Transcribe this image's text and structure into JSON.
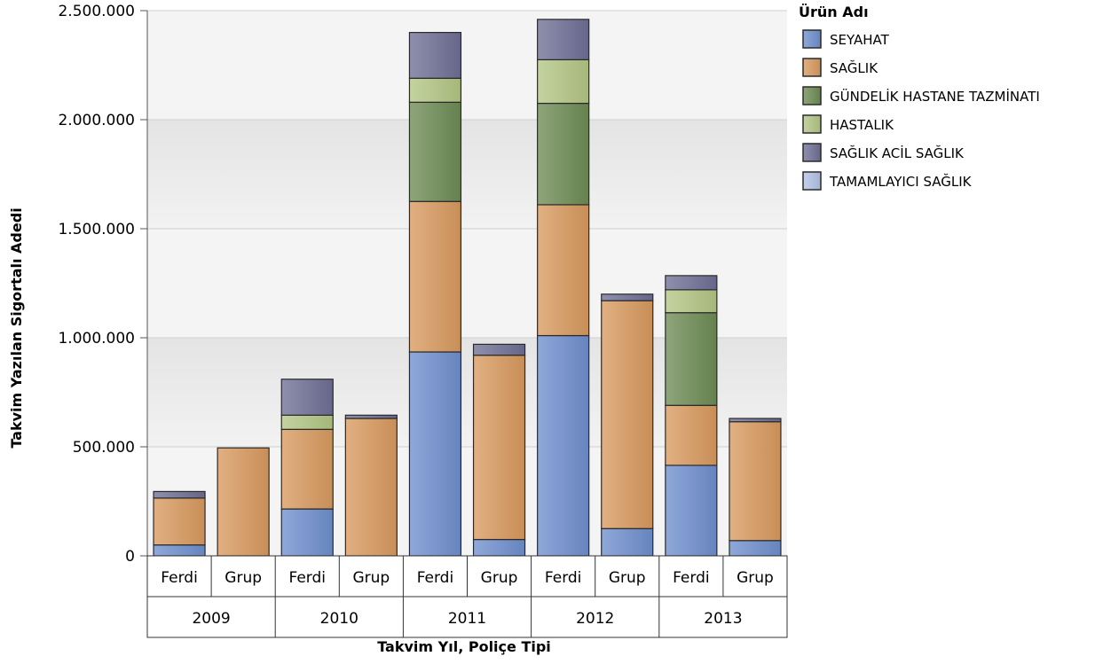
{
  "chart_data": {
    "type": "bar",
    "stacked": true,
    "xlabel": "Takvim Yıl, Poliçe Tipi",
    "ylabel": "Takvim Yazılan Sigortalı Adedi",
    "ylim": [
      0,
      2500000
    ],
    "y_ticks": [
      "0",
      "500.000",
      "1.000.000",
      "1.500.000",
      "2.000.000",
      "2.500.000"
    ],
    "grid": true,
    "legend_placement": "top-right",
    "legend_title": "Ürün Adı",
    "groups": [
      "2009",
      "2010",
      "2011",
      "2012",
      "2013"
    ],
    "categories": [
      "Ferdi",
      "Grup",
      "Ferdi",
      "Grup",
      "Ferdi",
      "Grup",
      "Ferdi",
      "Grup",
      "Ferdi",
      "Grup"
    ],
    "series": [
      {
        "name": "SEYAHAT",
        "color": "#6f8fce",
        "values": [
          50000,
          0,
          215000,
          0,
          935000,
          75000,
          1010000,
          125000,
          415000,
          70000
        ]
      },
      {
        "name": "SAĞLIK",
        "color": "#d99a5f",
        "values": [
          215000,
          495000,
          365000,
          630000,
          690000,
          845000,
          600000,
          1045000,
          275000,
          545000
        ]
      },
      {
        "name": "GÜNDELİK HASTANE TAZMİNATI",
        "color": "#6e8c55",
        "values": [
          0,
          0,
          0,
          0,
          455000,
          0,
          465000,
          0,
          425000,
          0
        ]
      },
      {
        "name": "HASTALIK",
        "color": "#b3c785",
        "values": [
          0,
          0,
          65000,
          0,
          110000,
          0,
          200000,
          0,
          105000,
          0
        ]
      },
      {
        "name": "SAĞLIK ACİL SAĞLIK",
        "color": "#6f6f96",
        "values": [
          30000,
          0,
          165000,
          15000,
          210000,
          50000,
          185000,
          30000,
          65000,
          15000
        ]
      },
      {
        "name": "TAMAMLAYICI SAĞLIK",
        "color": "#b3c3e6",
        "values": [
          0,
          0,
          0,
          0,
          0,
          0,
          0,
          0,
          0,
          0
        ]
      }
    ]
  }
}
